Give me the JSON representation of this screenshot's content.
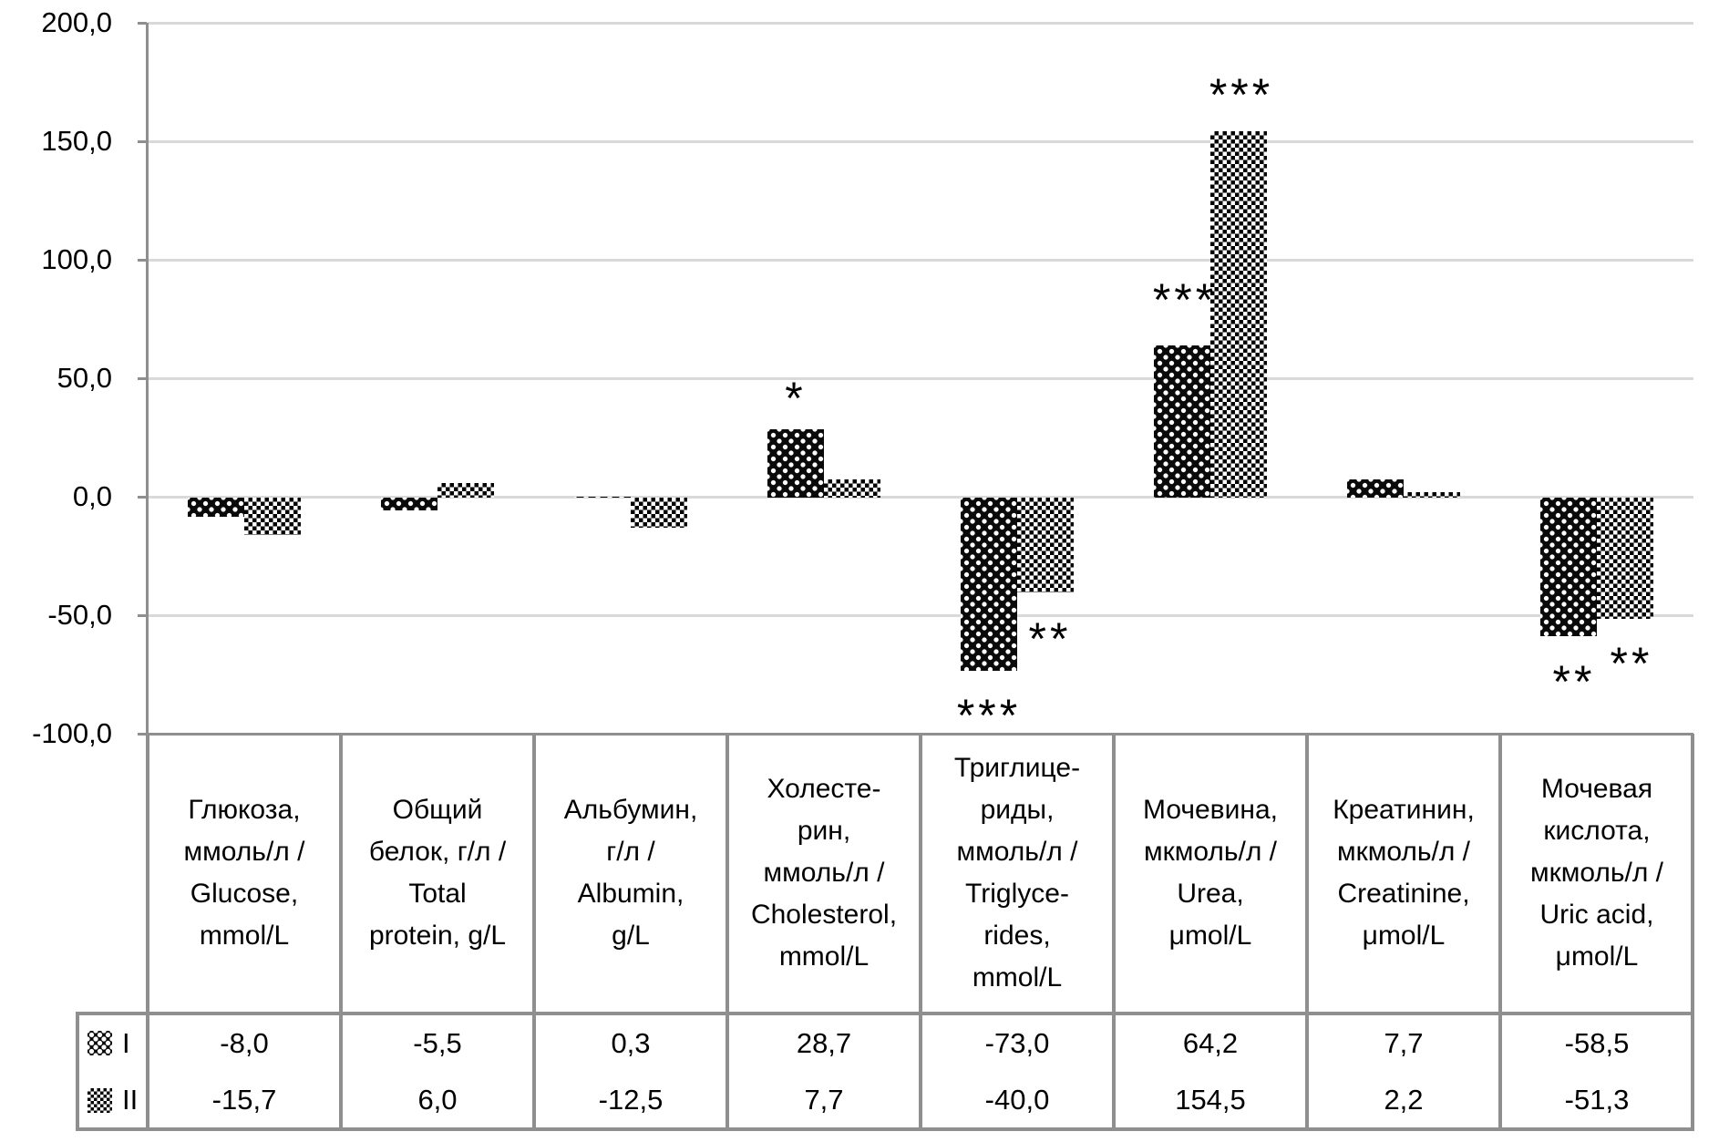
{
  "chart_data": {
    "type": "bar",
    "title": "",
    "xlabel": "",
    "ylabel": "",
    "ylim": [
      -100,
      200
    ],
    "grid": true,
    "ytick_labels": [
      "200,0",
      "150,0",
      "100,0",
      "50,0",
      "0,0",
      "-50,0",
      "-100,0"
    ],
    "legend_position": "left-of-data-table-rows",
    "categories": [
      "Глюкоза,\nммоль/л /\nGlucose,\nmmol/L",
      "Общий\nбелок, г/л /\nTotal\nprotein, g/L",
      "Альбумин,\nг/л /\nAlbumin,\ng/L",
      "Холесте-\nрин,\nммоль/л /\nCholesterol,\nmmol/L",
      "Триглице-\nриды,\nммоль/л /\nTriglyce-\nrides,\nmmol/L",
      "Мочевина,\nмкмоль/л /\nUrea,\nμmol/L",
      "Креатинин,\nмкмоль/л /\nCreatinine,\nμmol/L",
      "Мочевая\nкислота,\nмкмоль/л /\nUric acid,\nμmol/L"
    ],
    "series": [
      {
        "name": "I",
        "pattern": "black-with-white-dots",
        "values": [
          -8.0,
          -5.5,
          0.3,
          28.7,
          -73.0,
          64.2,
          7.7,
          -58.5
        ],
        "display": [
          "-8,0",
          "-5,5",
          "0,3",
          "28,7",
          "-73,0",
          "64,2",
          "7,7",
          "-58,5"
        ]
      },
      {
        "name": "II",
        "pattern": "fine-checkerboard",
        "values": [
          -15.7,
          6.0,
          -12.5,
          7.7,
          -40.0,
          154.5,
          2.2,
          -51.3
        ],
        "display": [
          "-15,7",
          "6,0",
          "-12,5",
          "7,7",
          "-40,0",
          "154,5",
          "2,2",
          "-51,3"
        ]
      }
    ],
    "annotations": [
      {
        "category": "Cholesterol",
        "series": "I",
        "text": "*"
      },
      {
        "category": "Triglycerides",
        "series": "I",
        "text": "***"
      },
      {
        "category": "Triglycerides",
        "series": "II",
        "text": "**"
      },
      {
        "category": "Urea",
        "series": "I",
        "text": "***"
      },
      {
        "category": "Urea",
        "series": "II",
        "text": "***"
      },
      {
        "category": "Uric acid",
        "series": "I",
        "text": "**"
      },
      {
        "category": "Uric acid",
        "series": "II",
        "text": "**"
      }
    ]
  }
}
